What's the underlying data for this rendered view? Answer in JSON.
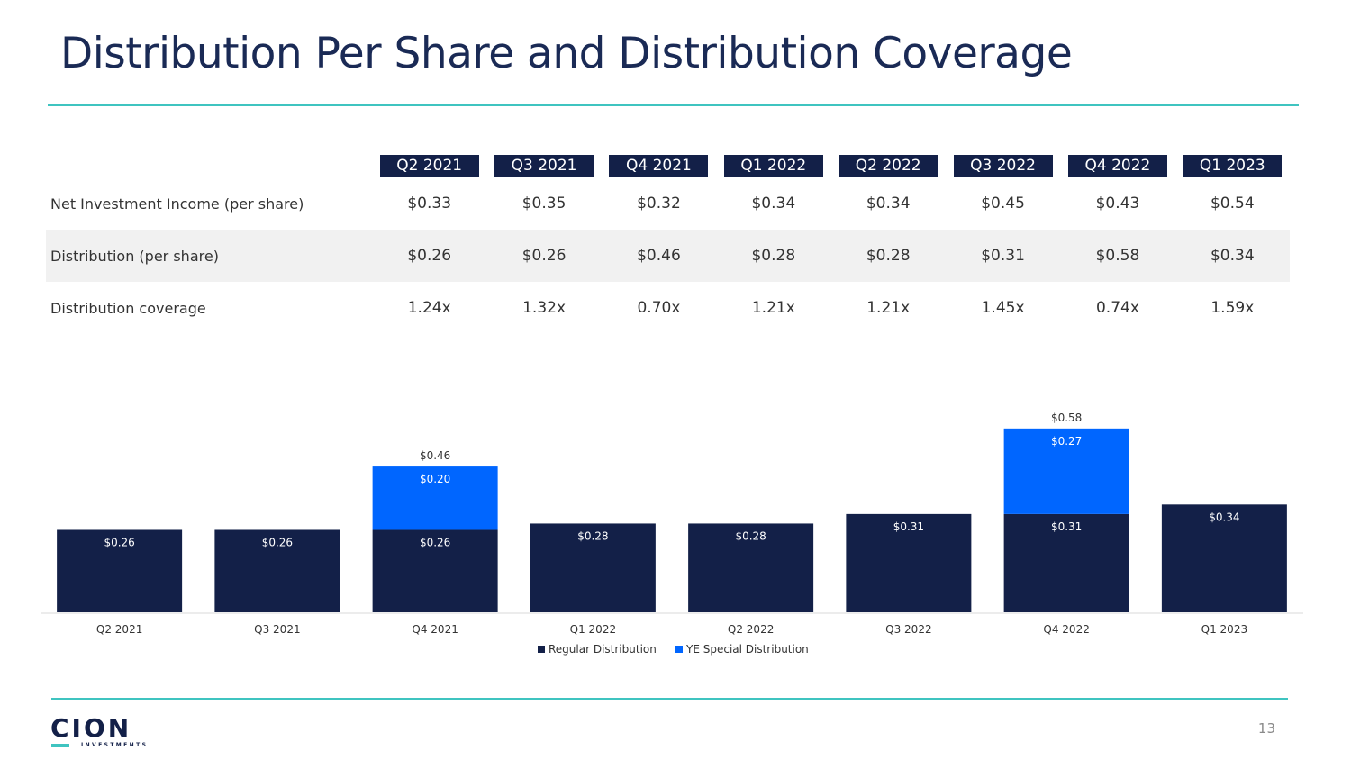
{
  "title": "Distribution Per Share and Distribution Coverage",
  "table": {
    "quarters": [
      "Q2 2021",
      "Q3 2021",
      "Q4 2021",
      "Q1 2022",
      "Q2 2022",
      "Q3 2022",
      "Q4 2022",
      "Q1 2023"
    ],
    "rows": [
      {
        "label": "Net Investment Income (per share)",
        "values": [
          "$0.33",
          "$0.35",
          "$0.32",
          "$0.34",
          "$0.34",
          "$0.45",
          "$0.43",
          "$0.54"
        ]
      },
      {
        "label": "Distribution (per share)",
        "values": [
          "$0.26",
          "$0.26",
          "$0.46",
          "$0.28",
          "$0.28",
          "$0.31",
          "$0.58",
          "$0.34"
        ]
      },
      {
        "label": "Distribution coverage",
        "values": [
          "1.24x",
          "1.32x",
          "0.70x",
          "1.21x",
          "1.21x",
          "1.45x",
          "0.74x",
          "1.59x"
        ]
      }
    ]
  },
  "chart_data": {
    "type": "bar",
    "stacked": true,
    "categories": [
      "Q2 2021",
      "Q3 2021",
      "Q4 2021",
      "Q1 2022",
      "Q2 2022",
      "Q3 2022",
      "Q4 2022",
      "Q1 2023"
    ],
    "series": [
      {
        "name": "Regular Distribution",
        "color": "#132048",
        "values": [
          0.26,
          0.26,
          0.26,
          0.28,
          0.28,
          0.31,
          0.31,
          0.34
        ],
        "labels": [
          "$0.26",
          "$0.26",
          "$0.26",
          "$0.28",
          "$0.28",
          "$0.31",
          "$0.31",
          "$0.34"
        ]
      },
      {
        "name": "YE Special Distribution",
        "color": "#0066ff",
        "values": [
          0,
          0,
          0.2,
          0,
          0,
          0,
          0.27,
          0
        ],
        "labels": [
          "",
          "",
          "$0.20",
          "",
          "",
          "",
          "$0.27",
          ""
        ]
      }
    ],
    "total_labels": [
      "",
      "",
      "$0.46",
      "",
      "",
      "",
      "$0.58",
      ""
    ],
    "legend_position": "bottom-center",
    "grid": false
  },
  "footer": {
    "logo_text": "CION",
    "logo_subtext": "INVESTMENTS",
    "page_number": "13"
  },
  "colors": {
    "navy": "#132048",
    "blue": "#0066ff",
    "teal": "#3fc4c0"
  }
}
